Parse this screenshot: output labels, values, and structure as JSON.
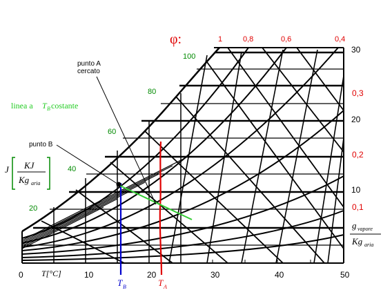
{
  "diagram": {
    "phi_symbol": "φ:",
    "phi_values": [
      "1",
      "0,8",
      "0,6",
      "0,4"
    ],
    "enthalpy_values": [
      "20",
      "40",
      "60",
      "80",
      "100"
    ],
    "enthalpy_unit": {
      "J": "J",
      "num": "KJ",
      "den": "Kg",
      "den_sub": "aria"
    },
    "x_axis_values": [
      "0",
      "10",
      "20",
      "30",
      "40",
      "50"
    ],
    "x_axis_label": "T[°C]",
    "right_axis_values": [
      "30",
      "20",
      "10"
    ],
    "right_axis_phi": [
      "0,3",
      "0,2",
      "0,1"
    ],
    "right_unit": {
      "num": "g",
      "num_sub": "vapore",
      "den": "Kg",
      "den_sub": "aria"
    },
    "annotations": {
      "punto_a_line1": "punto A",
      "punto_a_line2": "cercato",
      "punto_b": "punto B",
      "linea_tb_prefix": "linea  a ",
      "linea_tb_var": "T",
      "linea_tb_sub": "B",
      "linea_tb_suffix": " costante"
    },
    "markers": {
      "ta_var": "T",
      "ta_sub": "A",
      "tb_var": "T",
      "tb_sub": "B"
    },
    "colors": {
      "phi": "#e00000",
      "enthalpy": "#008a00",
      "tb_line": "#0000cc",
      "ta_line": "#e00000",
      "tb_const": "#33cc33"
    }
  }
}
